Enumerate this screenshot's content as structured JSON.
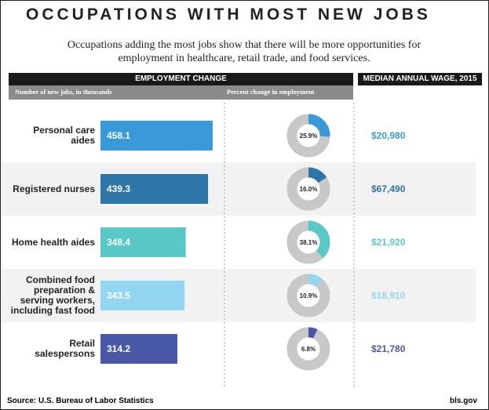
{
  "title": "OCCUPATIONS WITH MOST NEW JOBS",
  "subtitle": "Occupations adding the most jobs show that there will be more opportunities for employment in healthcare, retail trade, and food services.",
  "source": "Source: U.S. Bureau of Labor Statistics",
  "credit": "bls.gov",
  "chart_data": [
    {
      "type": "bar",
      "header": "EMPLOYMENT CHANGE",
      "axis_label": "Number of new jobs, in thousands",
      "categories": [
        "Personal care aides",
        "Registered nurses",
        "Home health aides",
        "Combined food preparation & serving workers, including fast food",
        "Retail salespersons"
      ],
      "values": [
        458.1,
        439.3,
        348.4,
        343.5,
        314.2
      ],
      "colors": [
        "#3a9ad9",
        "#2e75a8",
        "#5bc8c8",
        "#93d6f2",
        "#4a58a8"
      ]
    },
    {
      "type": "pie",
      "axis_label": "Percent change in employment",
      "values": [
        25.9,
        16.0,
        38.1,
        10.9,
        6.8
      ],
      "value_labels": [
        "25.9%",
        "16.0%",
        "38.1%",
        "10.9%",
        "6.8%"
      ],
      "colors": [
        "#3a9ad9",
        "#2e75a8",
        "#5bc8c8",
        "#93d6f2",
        "#4a58a8"
      ]
    },
    {
      "type": "text",
      "header": "MEDIAN ANNUAL WAGE, 2015",
      "values": [
        20980,
        67490,
        21920,
        18910,
        21780
      ],
      "value_labels": [
        "$20,980",
        "$67,490",
        "$21,920",
        "$18,910",
        "$21,780"
      ],
      "colors": [
        "#3a9ad9",
        "#2e75a8",
        "#5bc8c8",
        "#93d6f2",
        "#4a58a8"
      ]
    }
  ]
}
